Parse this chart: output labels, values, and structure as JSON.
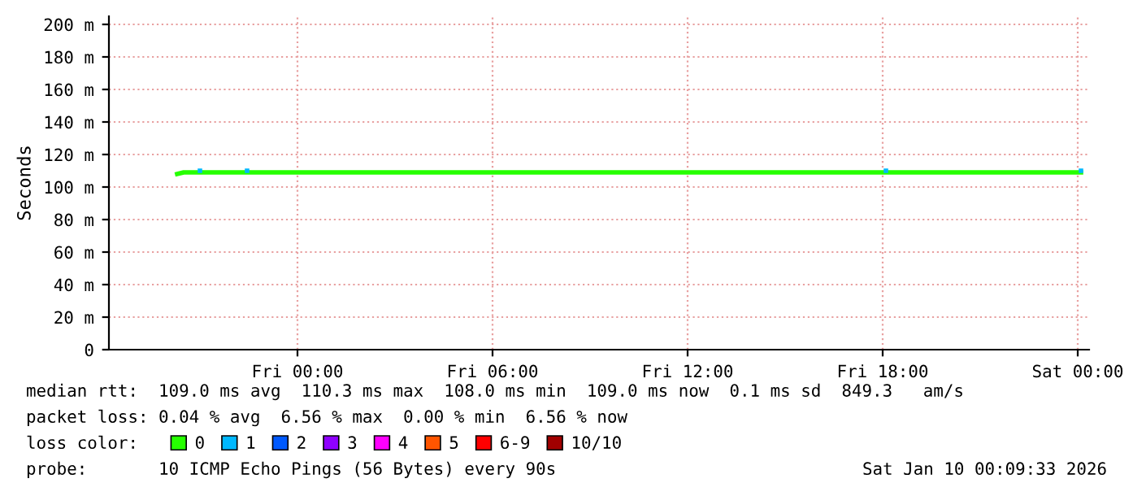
{
  "chart_data": {
    "type": "line",
    "ylabel": "Seconds",
    "xlim": [
      "2026-01-08T18:12",
      "2026-01-10T00:21"
    ],
    "xticks": [
      {
        "value": "2026-01-09T00:00",
        "label": "Fri 00:00"
      },
      {
        "value": "2026-01-09T06:00",
        "label": "Fri 06:00"
      },
      {
        "value": "2026-01-09T12:00",
        "label": "Fri 12:00"
      },
      {
        "value": "2026-01-09T18:00",
        "label": "Fri 18:00"
      },
      {
        "value": "2026-01-10T00:00",
        "label": "Sat 00:00"
      }
    ],
    "ylim": [
      0,
      205
    ],
    "yticks": [
      0,
      {
        "value": 20,
        "label": "20 m"
      },
      {
        "value": 40,
        "label": "40 m"
      },
      {
        "value": 60,
        "label": "60 m"
      },
      {
        "value": 80,
        "label": "80 m"
      },
      {
        "value": 100,
        "label": "100 m"
      },
      {
        "value": 120,
        "label": "120 m"
      },
      {
        "value": 140,
        "label": "140 m"
      },
      {
        "value": 160,
        "label": "160 m"
      },
      {
        "value": 180,
        "label": "180 m"
      },
      {
        "value": 200,
        "label": "200 m"
      }
    ],
    "grid": true,
    "legend": "bottom",
    "series": [
      {
        "name": "0",
        "color": "#26ff00",
        "x": [
          "2026-01-08T20:18",
          "2026-01-08T20:30",
          "2026-01-09T06:00",
          "2026-01-09T12:00",
          "2026-01-09T18:00",
          "2026-01-10T00:06"
        ],
        "values": [
          108,
          109,
          109,
          109,
          109,
          109
        ]
      },
      {
        "name": "1",
        "type": "scatter",
        "color": "#00b8ff",
        "x": [
          "2026-01-08T21:00",
          "2026-01-08T22:27",
          "2026-01-09T18:06",
          "2026-01-10T00:06"
        ],
        "values": [
          110,
          110,
          110,
          110
        ]
      },
      {
        "name": "2",
        "type": "scatter",
        "color": "#0059ff"
      },
      {
        "name": "3",
        "type": "scatter",
        "color": "#8f00ff"
      },
      {
        "name": "4",
        "type": "scatter",
        "color": "#ff00ff"
      },
      {
        "name": "5",
        "type": "scatter",
        "color": "#ff5500"
      },
      {
        "name": "6-9",
        "type": "scatter",
        "color": "#ff0000"
      },
      {
        "name": "10/10",
        "type": "scatter",
        "color": "#a10000"
      }
    ],
    "annotations": [
      "median rtt:  109.0 ms avg  110.3 ms max  108.0 ms min  109.0 ms now  0.1 ms sd  849.3   am/s",
      "packet loss: 0.04 % avg  6.56 % max  0.00 % min  6.56 % now",
      "loss color:",
      "probe:       10 ICMP Echo Pings (56 Bytes) every 90s",
      "Sat Jan 10 00:09:33 2026"
    ]
  }
}
